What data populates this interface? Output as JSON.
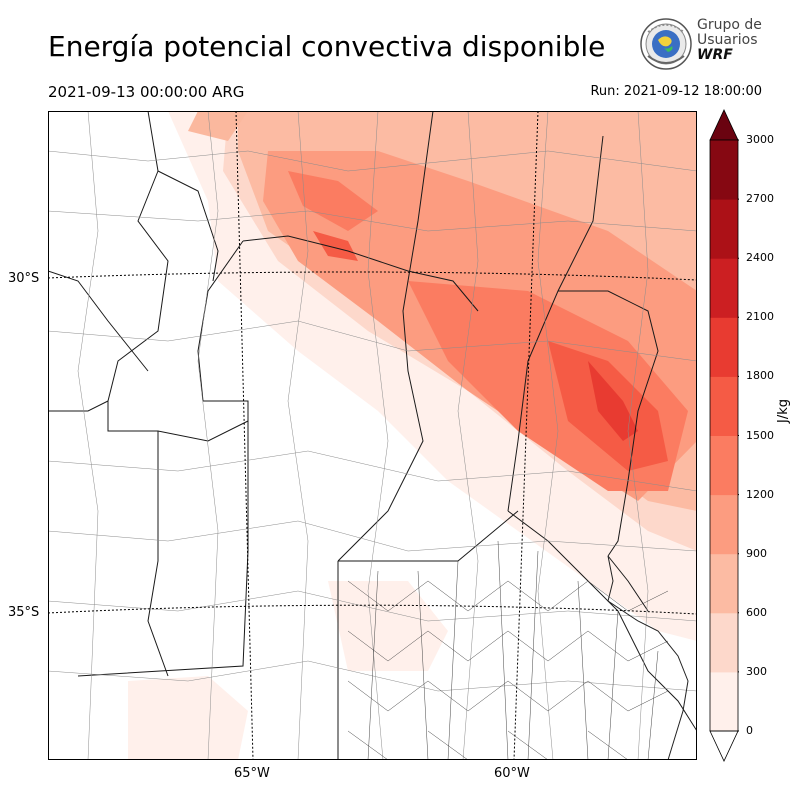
{
  "title": "Energía potencial convectiva disponible",
  "valid_time": "2021-09-13 00:00:00 ARG",
  "run_time": "Run: 2021-09-12 18:00:00",
  "logo": {
    "line1": "Grupo de",
    "line2": "Usuarios",
    "line3": "WRF",
    "icon": "globe-emblem-icon"
  },
  "axes": {
    "lat_labels": [
      "30°S",
      "35°S"
    ],
    "lon_labels": [
      "65°W",
      "60°W"
    ]
  },
  "colorbar": {
    "unit": "J/kg",
    "ticks": [
      "0",
      "300",
      "600",
      "900",
      "1200",
      "1500",
      "1800",
      "2100",
      "2400",
      "2700",
      "3000"
    ],
    "colors": [
      "#fff0eb",
      "#fdd8cb",
      "#fcbba3",
      "#fc9c80",
      "#fb7c61",
      "#f55b45",
      "#e83b31",
      "#cc1f22",
      "#ac1117",
      "#860812",
      "#6a0310"
    ]
  },
  "chart_data": {
    "type": "heatmap",
    "title": "Energía potencial convectiva disponible",
    "variable": "CAPE",
    "unit": "J/kg",
    "levels": [
      0,
      300,
      600,
      900,
      1200,
      1500,
      1800,
      2100,
      2400,
      2700,
      3000
    ],
    "extend": "both",
    "gridlines": {
      "lat": [
        "30°S",
        "35°S"
      ],
      "lon": [
        "65°W",
        "60°W"
      ]
    }
  }
}
